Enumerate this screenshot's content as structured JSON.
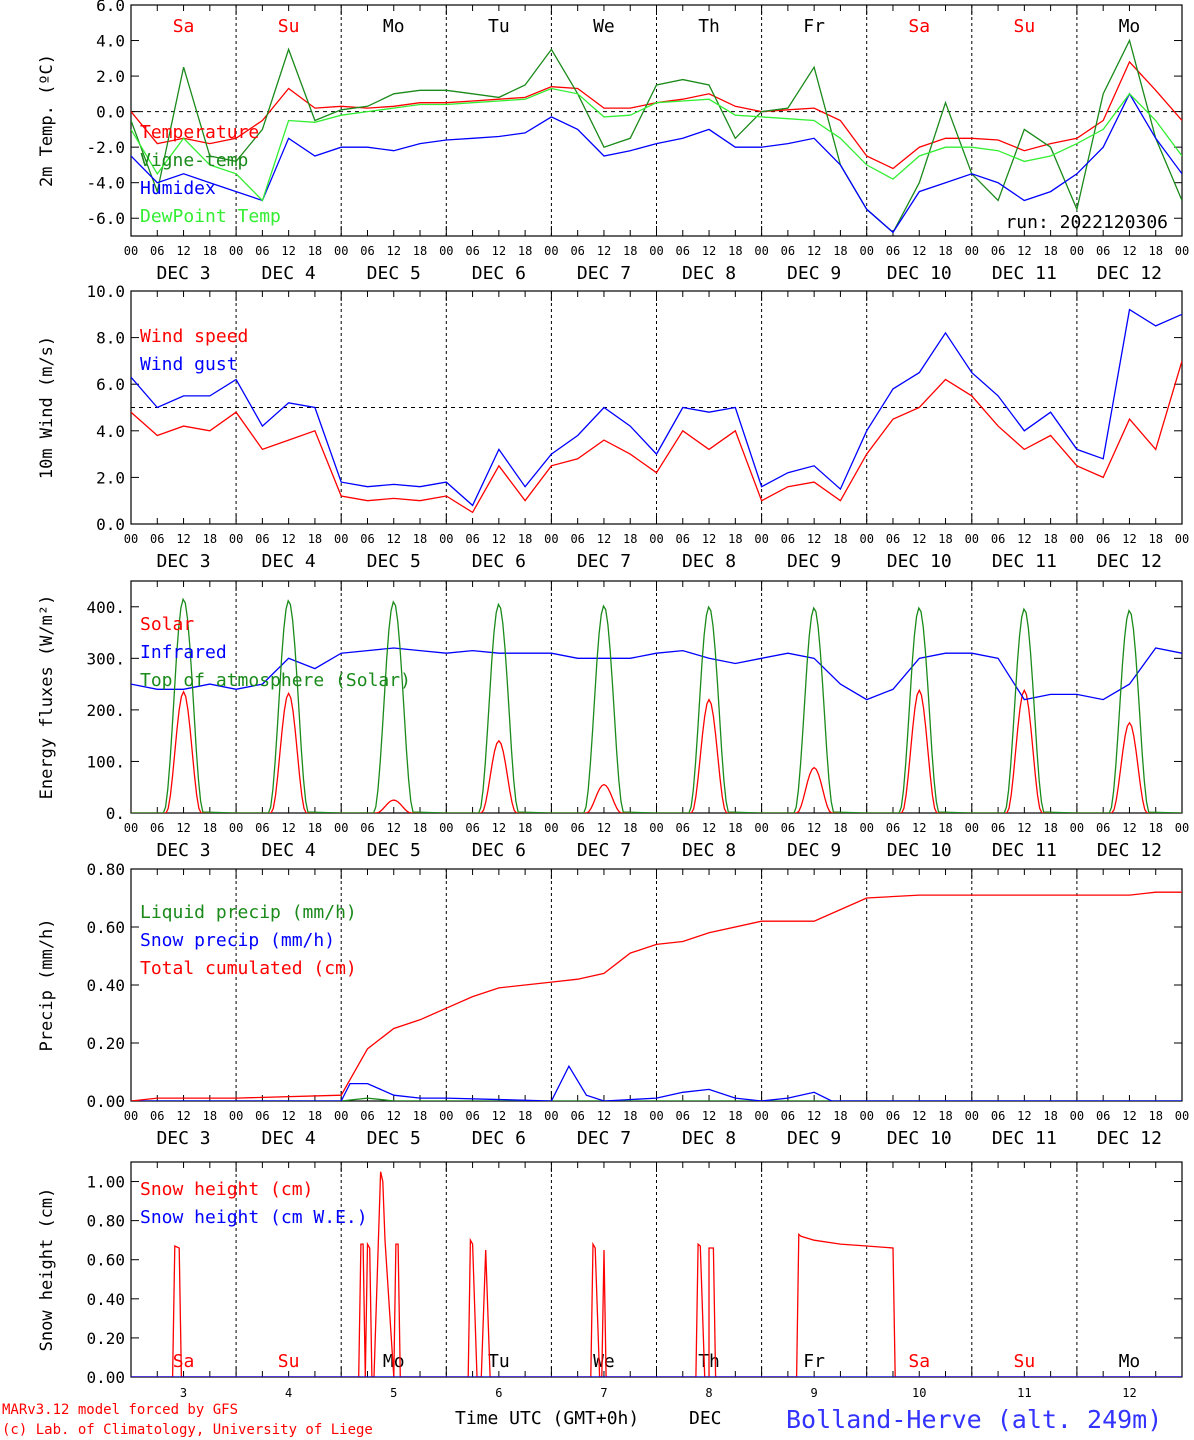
{
  "footer": {
    "model_line": "MARv3.12 model forced by GFS",
    "lab_line": "(c) Lab. of Climatology, University of Liege",
    "xaxis_label": "Time UTC (GMT+0h)",
    "xaxis_month": "DEC",
    "station": "Bolland-Herve (alt. 249m)"
  },
  "days": {
    "weekdays": [
      "Sa",
      "Su",
      "Mo",
      "Tu",
      "We",
      "Th",
      "Fr",
      "Sa",
      "Su",
      "Mo"
    ],
    "weekend_flags": [
      true,
      true,
      false,
      false,
      false,
      false,
      false,
      true,
      true,
      false
    ],
    "date_labels": [
      "DEC  3",
      "DEC  4",
      "DEC  5",
      "DEC  6",
      "DEC  7",
      "DEC  8",
      "DEC  9",
      "DEC 10",
      "DEC 11",
      "DEC 12"
    ],
    "day_numbers": [
      "3",
      "4",
      "5",
      "6",
      "7",
      "8",
      "9",
      "10",
      "11",
      "12"
    ],
    "hour_ticks": [
      "00",
      "06",
      "12",
      "18"
    ],
    "final_hour": "00"
  },
  "colors": {
    "red": "#ff0000",
    "green": "#1a8a1a",
    "lightgreen": "#33ee33",
    "blue": "#0000ff",
    "weekend": "#ff0000",
    "weekday": "#000000",
    "station": "#3333ff"
  },
  "chart_data": [
    {
      "id": "temp",
      "type": "line",
      "ylabel": "2m Temp. (ºC)",
      "ylim": [
        -7,
        6
      ],
      "yticks": [
        6,
        4,
        2,
        0,
        -2,
        -4,
        -6
      ],
      "ytick_labels": [
        "6.0",
        "4.0",
        "2.0",
        "0.0",
        "-2.0",
        "-4.0",
        "-6.0"
      ],
      "ref_line": 0,
      "annotation": "run: 2022120306",
      "show_weekdays_top": true,
      "x_unit": "hours since DEC 3 00 UTC",
      "series": [
        {
          "name": "Temperature",
          "color": "red",
          "x": [
            0,
            6,
            12,
            18,
            24,
            30,
            36,
            42,
            48,
            54,
            60,
            66,
            72,
            78,
            84,
            90,
            96,
            102,
            108,
            114,
            120,
            126,
            132,
            138,
            144,
            150,
            156,
            162,
            168,
            174,
            180,
            186,
            192,
            198,
            204,
            210,
            216,
            222,
            228,
            234,
            240
          ],
          "y": [
            0,
            -1.8,
            -1.5,
            -1.8,
            -1.5,
            -0.5,
            1.3,
            0.2,
            0.3,
            0.2,
            0.3,
            0.5,
            0.5,
            0.6,
            0.7,
            0.8,
            1.4,
            1.3,
            0.2,
            0.2,
            0.5,
            0.7,
            1.0,
            0.3,
            0.0,
            0.1,
            0.2,
            -0.5,
            -2.5,
            -3.2,
            -2.0,
            -1.5,
            -1.5,
            -1.6,
            -2.2,
            -1.8,
            -1.5,
            -0.5,
            2.8,
            1.2,
            -0.5
          ]
        },
        {
          "name": "Vigne-temp",
          "color": "green",
          "x": [
            0,
            6,
            12,
            18,
            24,
            30,
            36,
            42,
            48,
            54,
            60,
            66,
            72,
            78,
            84,
            90,
            96,
            102,
            108,
            114,
            120,
            126,
            132,
            138,
            144,
            150,
            156,
            162,
            168,
            174,
            180,
            186,
            192,
            198,
            204,
            210,
            216,
            222,
            228,
            234,
            240
          ],
          "y": [
            -0.5,
            -4.5,
            2.5,
            -2.5,
            -2.8,
            -1.0,
            3.5,
            -0.5,
            0.1,
            0.3,
            1.0,
            1.2,
            1.2,
            1.0,
            0.8,
            1.5,
            3.5,
            1.0,
            -2.0,
            -1.5,
            1.5,
            1.8,
            1.5,
            -1.5,
            0.0,
            0.2,
            2.5,
            -3.0,
            -5.5,
            -6.8,
            -4.0,
            0.5,
            -3.5,
            -5.0,
            -1.0,
            -2.0,
            -5.5,
            1.0,
            4.0,
            -1.5,
            -5.0
          ]
        },
        {
          "name": "Humidex",
          "color": "blue",
          "x": [
            0,
            6,
            12,
            18,
            24,
            30,
            36,
            42,
            48,
            54,
            60,
            66,
            72,
            78,
            84,
            90,
            96,
            102,
            108,
            114,
            120,
            126,
            132,
            138,
            144,
            150,
            156,
            162,
            168,
            174,
            180,
            186,
            192,
            198,
            204,
            210,
            216,
            222,
            228,
            234,
            240
          ],
          "y": [
            -2.5,
            -4.0,
            -3.5,
            -4.0,
            -4.5,
            -5.0,
            -1.5,
            -2.5,
            -2.0,
            -2.0,
            -2.2,
            -1.8,
            -1.6,
            -1.5,
            -1.4,
            -1.2,
            -0.3,
            -1.0,
            -2.5,
            -2.2,
            -1.8,
            -1.5,
            -1.0,
            -2.0,
            -2.0,
            -1.8,
            -1.5,
            -3.0,
            -5.5,
            -6.8,
            -4.5,
            -4.0,
            -3.5,
            -4.0,
            -5.0,
            -4.5,
            -3.5,
            -2.0,
            1.0,
            -1.5,
            -3.5
          ]
        },
        {
          "name": "DewPoint Temp",
          "color": "lightgreen",
          "x": [
            0,
            6,
            12,
            18,
            24,
            30,
            36,
            42,
            48,
            54,
            60,
            66,
            72,
            78,
            84,
            90,
            96,
            102,
            108,
            114,
            120,
            126,
            132,
            138,
            144,
            150,
            156,
            162,
            168,
            174,
            180,
            186,
            192,
            198,
            204,
            210,
            216,
            222,
            228,
            234,
            240
          ],
          "y": [
            -1.0,
            -3.5,
            -1.5,
            -3.0,
            -3.5,
            -5.0,
            -0.5,
            -0.6,
            -0.2,
            0.0,
            0.2,
            0.4,
            0.4,
            0.5,
            0.6,
            0.7,
            1.3,
            1.0,
            -0.3,
            -0.2,
            0.5,
            0.6,
            0.7,
            -0.2,
            -0.3,
            -0.4,
            -0.5,
            -1.5,
            -3.0,
            -3.8,
            -2.5,
            -2.0,
            -2.0,
            -2.2,
            -2.8,
            -2.5,
            -1.8,
            -1.0,
            1.0,
            -0.5,
            -2.5
          ]
        }
      ]
    },
    {
      "id": "wind",
      "type": "line",
      "ylabel": "10m Wind (m/s)",
      "ylim": [
        0,
        10
      ],
      "yticks": [
        10,
        8,
        6,
        4,
        2,
        0
      ],
      "ytick_labels": [
        "10.0",
        "8.0",
        "6.0",
        "4.0",
        "2.0",
        "0.0"
      ],
      "ref_line": 5,
      "series": [
        {
          "name": "Wind speed",
          "color": "red",
          "x": [
            0,
            6,
            12,
            18,
            24,
            30,
            36,
            42,
            48,
            54,
            60,
            66,
            72,
            78,
            84,
            90,
            96,
            102,
            108,
            114,
            120,
            126,
            132,
            138,
            144,
            150,
            156,
            162,
            168,
            174,
            180,
            186,
            192,
            198,
            204,
            210,
            216,
            222,
            228,
            234,
            240
          ],
          "y": [
            4.8,
            3.8,
            4.2,
            4.0,
            4.8,
            3.2,
            3.6,
            4.0,
            1.2,
            1.0,
            1.1,
            1.0,
            1.2,
            0.5,
            2.5,
            1.0,
            2.5,
            2.8,
            3.6,
            3.0,
            2.2,
            4.0,
            3.2,
            4.0,
            1.0,
            1.6,
            1.8,
            1.0,
            3.0,
            4.5,
            5.0,
            6.2,
            5.5,
            4.2,
            3.2,
            3.8,
            2.5,
            2.0,
            4.5,
            3.2,
            7.0
          ]
        },
        {
          "name": "Wind gust",
          "color": "blue",
          "x": [
            0,
            6,
            12,
            18,
            24,
            30,
            36,
            42,
            48,
            54,
            60,
            66,
            72,
            78,
            84,
            90,
            96,
            102,
            108,
            114,
            120,
            126,
            132,
            138,
            144,
            150,
            156,
            162,
            168,
            174,
            180,
            186,
            192,
            198,
            204,
            210,
            216,
            222,
            228,
            234,
            240
          ],
          "y": [
            6.3,
            5.0,
            5.5,
            5.5,
            6.2,
            4.2,
            5.2,
            5.0,
            1.8,
            1.6,
            1.7,
            1.6,
            1.8,
            0.8,
            3.2,
            1.6,
            3.0,
            3.8,
            5.0,
            4.2,
            3.0,
            5.0,
            4.8,
            5.0,
            1.6,
            2.2,
            2.5,
            1.5,
            4.0,
            5.8,
            6.5,
            8.2,
            6.5,
            5.5,
            4.0,
            4.8,
            3.2,
            2.8,
            9.2,
            8.5,
            9.0
          ]
        }
      ]
    },
    {
      "id": "flux",
      "type": "line",
      "ylabel": "Energy fluxes (W/m²)",
      "ylim": [
        0,
        450
      ],
      "yticks": [
        400,
        300,
        200,
        100,
        0
      ],
      "ytick_labels": [
        "400.",
        "300.",
        "200.",
        "100.",
        "0."
      ],
      "ref_line": null,
      "series": [
        {
          "name": "Solar",
          "color": "red",
          "daily_peaks": [
            235,
            232,
            25,
            140,
            55,
            220,
            88,
            238,
            238,
            175
          ]
        },
        {
          "name": "Infrared",
          "color": "blue",
          "x": [
            0,
            6,
            12,
            18,
            24,
            30,
            36,
            42,
            48,
            54,
            60,
            66,
            72,
            78,
            84,
            90,
            96,
            102,
            108,
            114,
            120,
            126,
            132,
            138,
            144,
            150,
            156,
            162,
            168,
            174,
            180,
            186,
            192,
            198,
            204,
            210,
            216,
            222,
            228,
            234,
            240
          ],
          "y": [
            250,
            240,
            240,
            250,
            240,
            250,
            300,
            280,
            310,
            315,
            320,
            315,
            310,
            315,
            310,
            310,
            310,
            300,
            300,
            300,
            310,
            315,
            300,
            290,
            300,
            310,
            300,
            250,
            220,
            240,
            300,
            310,
            310,
            300,
            220,
            230,
            230,
            220,
            250,
            320,
            310
          ]
        },
        {
          "name": "Top of atmosphere (Solar)",
          "color": "green",
          "daily_peaks": [
            415,
            412,
            410,
            405,
            402,
            400,
            398,
            398,
            396,
            393
          ]
        }
      ]
    },
    {
      "id": "precip",
      "type": "line",
      "ylabel": "Precip (mm/h)",
      "ylim": [
        0,
        0.8
      ],
      "yticks": [
        0.8,
        0.6,
        0.4,
        0.2,
        0
      ],
      "ytick_labels": [
        "0.80",
        "0.60",
        "0.40",
        "0.20",
        "0.00"
      ],
      "ref_line": null,
      "series": [
        {
          "name": "Liquid precip (mm/h)",
          "color": "green",
          "x": [
            0,
            24,
            48,
            54,
            60,
            240
          ],
          "y": [
            0,
            0,
            0,
            0.01,
            0,
            0
          ]
        },
        {
          "name": "Snow precip (mm/h)",
          "color": "blue",
          "x": [
            0,
            24,
            48,
            50,
            54,
            60,
            66,
            72,
            96,
            100,
            104,
            108,
            120,
            126,
            132,
            138,
            144,
            150,
            156,
            160,
            240
          ],
          "y": [
            0,
            0,
            0,
            0.06,
            0.06,
            0.02,
            0.01,
            0.01,
            0,
            0.12,
            0.02,
            0,
            0.01,
            0.03,
            0.04,
            0.01,
            0,
            0.01,
            0.03,
            0,
            0
          ]
        },
        {
          "name": "Total cumulated (cm)",
          "color": "red",
          "x": [
            0,
            6,
            24,
            48,
            54,
            60,
            66,
            72,
            78,
            84,
            90,
            96,
            102,
            108,
            114,
            120,
            126,
            132,
            144,
            150,
            156,
            162,
            168,
            180,
            192,
            204,
            216,
            228,
            234,
            240
          ],
          "y": [
            0,
            0.01,
            0.01,
            0.02,
            0.18,
            0.25,
            0.28,
            0.32,
            0.36,
            0.39,
            0.4,
            0.41,
            0.42,
            0.44,
            0.51,
            0.54,
            0.55,
            0.58,
            0.62,
            0.62,
            0.62,
            0.66,
            0.7,
            0.71,
            0.71,
            0.71,
            0.71,
            0.71,
            0.72,
            0.72
          ]
        }
      ]
    },
    {
      "id": "snow",
      "type": "line",
      "ylabel": "Snow height (cm)",
      "ylim": [
        0,
        1.1
      ],
      "yticks": [
        1.0,
        0.8,
        0.6,
        0.4,
        0.2,
        0
      ],
      "ytick_labels": [
        "1.00",
        "0.80",
        "0.60",
        "0.40",
        "0.20",
        "0.00"
      ],
      "ref_line": null,
      "show_weekdays_bottom": true,
      "series": [
        {
          "name": "Snow height (cm)",
          "color": "red",
          "x": [
            0,
            9.5,
            10,
            11,
            11.5,
            52,
            52.5,
            53,
            53.5,
            54,
            54.5,
            55,
            55.5,
            57,
            57.5,
            58,
            60,
            60.5,
            61,
            61.5,
            62,
            77,
            77.5,
            78,
            79,
            80,
            81,
            82,
            82.5,
            83,
            105,
            105.5,
            106,
            107,
            107.5,
            108,
            108.5,
            109,
            129,
            129.5,
            130,
            131,
            131.5,
            132,
            132,
            133,
            133.5,
            134,
            152,
            152.5,
            153,
            156,
            162,
            168,
            174,
            174.5,
            175,
            240
          ],
          "y": [
            0,
            0,
            0.67,
            0.66,
            0,
            0,
            0.68,
            0.68,
            0,
            0.68,
            0.66,
            0,
            0,
            1.05,
            1.0,
            0.7,
            0,
            0.68,
            0.68,
            0,
            0,
            0,
            0.7,
            0.68,
            0,
            0,
            0.65,
            0,
            0,
            0,
            0,
            0.68,
            0.66,
            0,
            0,
            0.65,
            0,
            0,
            0,
            0.68,
            0.67,
            0,
            0,
            0,
            0.66,
            0.66,
            0,
            0,
            0,
            0.73,
            0.72,
            0.7,
            0.68,
            0.67,
            0.66,
            0,
            0,
            0
          ]
        },
        {
          "name": "Snow height (cm W.E.)",
          "color": "blue",
          "x": [
            0,
            240
          ],
          "y": [
            0,
            0
          ]
        }
      ]
    }
  ]
}
